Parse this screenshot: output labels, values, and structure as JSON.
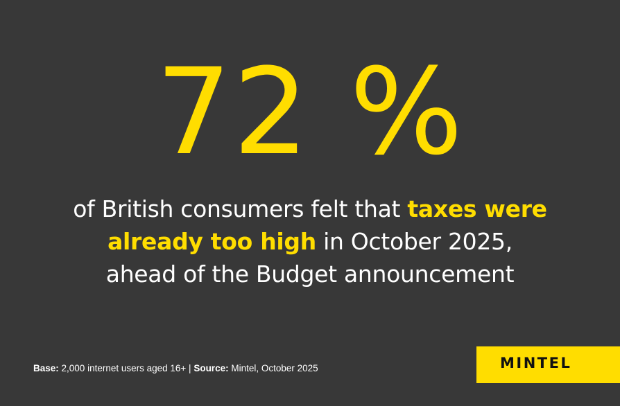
{
  "stat": {
    "value": "72 %"
  },
  "description": {
    "part1": "of British consumers felt that ",
    "highlight1": "taxes were",
    "highlight2": "already too high",
    "part2": " in October 2025,",
    "part3": "ahead of the Budget announcement"
  },
  "footnote": {
    "base_label": "Base:",
    "base_text": " 2,000 internet users aged 16+ | ",
    "source_label": "Source:",
    "source_text": " Mintel, October 2025"
  },
  "logo": {
    "text": "MINTEL"
  },
  "colors": {
    "background": "#383838",
    "accent": "#FFDD00",
    "text": "#ffffff"
  }
}
